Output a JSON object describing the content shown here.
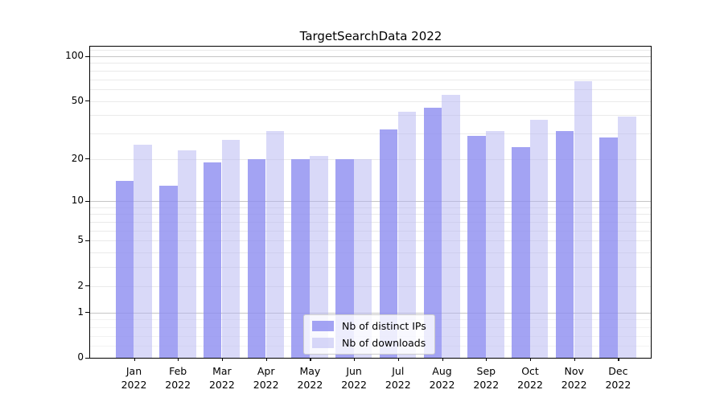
{
  "title": "TargetSearchData 2022",
  "chart_data": {
    "type": "bar",
    "title": "TargetSearchData 2022",
    "categories": [
      "Jan",
      "Feb",
      "Mar",
      "Apr",
      "May",
      "Jun",
      "Jul",
      "Aug",
      "Sep",
      "Oct",
      "Nov",
      "Dec"
    ],
    "category_year": "2022",
    "series": [
      {
        "name": "Nb of distinct IPs",
        "color_solid": "#a3a3f3",
        "color_rgba": "rgba(140,140,240,0.8)",
        "values": [
          14,
          13,
          19,
          20,
          20,
          20,
          32,
          45,
          29,
          24,
          31,
          28
        ]
      },
      {
        "name": "Nb of downloads",
        "color_solid": "#d9d9f9",
        "color_rgba": "rgba(179,179,242,0.5)",
        "values": [
          25,
          23,
          27,
          31,
          21,
          20,
          42,
          55,
          31,
          37,
          68,
          39
        ]
      }
    ],
    "xlabel": "",
    "ylabel": "",
    "yscale": "log(1+y)",
    "ylim": [
      0,
      116
    ],
    "yticks": [
      0,
      1,
      2,
      5,
      10,
      20,
      50,
      100
    ],
    "major_gridlines": [
      1,
      10,
      100
    ],
    "minor_gridlines": [
      0.2,
      0.4,
      0.6,
      0.8,
      2,
      3,
      4,
      5,
      6,
      7,
      8,
      9,
      20,
      30,
      40,
      50,
      60,
      70,
      80,
      90,
      110
    ],
    "grid": true,
    "legend_position": "lower center"
  },
  "colors": {
    "major_grid": "#c5c5c5",
    "minor_grid": "#eaeaea",
    "sub1_grid": "#f2f2f2",
    "axis": "#000000",
    "legend_border": "#cccccc"
  }
}
